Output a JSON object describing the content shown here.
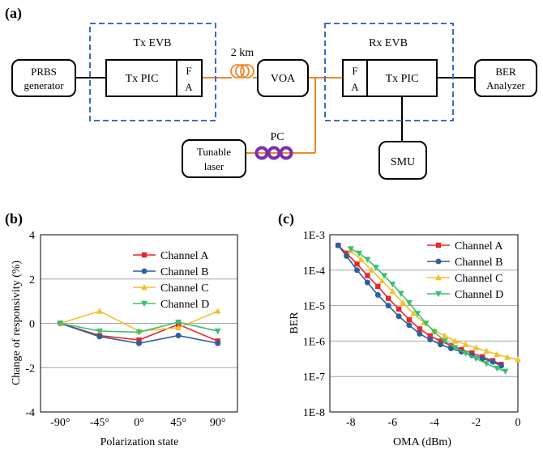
{
  "panel_a": {
    "label": "(a)",
    "tx_evb": "Tx EVB",
    "rx_evb": "Rx EVB",
    "prbs_line1": "PRBS",
    "prbs_line2": "generator",
    "tx_pic": "Tx PIC",
    "rx_pic": "Tx PIC",
    "fa_f": "F",
    "fa_a": "A",
    "fiber_length": "2 km",
    "voa": "VOA",
    "pc": "PC",
    "laser_line1": "Tunable",
    "laser_line2": "laser",
    "smu": "SMU",
    "ber_line1": "BER",
    "ber_line2": "Analyzer",
    "colors": {
      "fiber": "#f0862a",
      "evb_dash": "#3b6cc5",
      "pc_loops": "#7b2fa8"
    }
  },
  "chart_data": [
    {
      "panel": "(b)",
      "type": "line",
      "xlabel": "Polarization state",
      "ylabel": "Change of responsivity (%)",
      "categories": [
        "-90°",
        "-45°",
        "0°",
        "45°",
        "90°"
      ],
      "ylim": [
        -4,
        4
      ],
      "yticks": [
        "-4",
        "-2",
        "0",
        "2",
        "4"
      ],
      "grid": "horizontal",
      "legend": "top-right",
      "series": [
        {
          "name": "Channel A",
          "color": "#e8262b",
          "marker": "square",
          "values": [
            0,
            -0.55,
            -0.75,
            -0.05,
            -0.8
          ]
        },
        {
          "name": "Channel B",
          "color": "#2e5f9e",
          "marker": "circle",
          "values": [
            0,
            -0.6,
            -0.9,
            -0.55,
            -0.9
          ]
        },
        {
          "name": "Channel C",
          "color": "#f2c12e",
          "marker": "triangle",
          "values": [
            0,
            0.55,
            -0.35,
            -0.2,
            0.55
          ]
        },
        {
          "name": "Channel D",
          "color": "#3cbf6f",
          "marker": "tri-down",
          "values": [
            0,
            -0.35,
            -0.4,
            0.05,
            -0.35
          ]
        }
      ]
    },
    {
      "panel": "(c)",
      "type": "line",
      "xlabel": "OMA (dBm)",
      "ylabel": "BER",
      "xlim": [
        -9,
        0
      ],
      "xticks": [
        "-8",
        "-6",
        "-4",
        "-2",
        "0"
      ],
      "yscale": "log",
      "ylim_exp": [
        -8,
        -3
      ],
      "yticks": [
        "1E-8",
        "1E-7",
        "1E-6",
        "1E-5",
        "1E-4",
        "1E-3"
      ],
      "grid": "horizontal",
      "legend": "top-right",
      "series": [
        {
          "name": "Channel A",
          "color": "#e8262b",
          "marker": "square",
          "x": [
            -8.6,
            -8.2,
            -7.7,
            -7.2,
            -6.7,
            -6.2,
            -5.7,
            -5.2,
            -4.7,
            -4.2,
            -3.7,
            -3.2,
            -2.7,
            -2.2,
            -1.7,
            -1.2,
            -0.8
          ],
          "y": [
            0.0005,
            0.0003,
            0.00015,
            7e-05,
            3.5e-05,
            1.6e-05,
            8e-06,
            4e-06,
            2.2e-06,
            1.4e-06,
            1e-06,
            7.5e-07,
            5.8e-07,
            4.6e-07,
            3.6e-07,
            2.8e-07,
            2.2e-07
          ]
        },
        {
          "name": "Channel B",
          "color": "#2e5f9e",
          "marker": "circle",
          "x": [
            -8.6,
            -8.2,
            -7.7,
            -7.2,
            -6.7,
            -6.2,
            -5.7,
            -5.2,
            -4.7,
            -4.2,
            -3.7,
            -3.2,
            -2.7,
            -2.2,
            -1.7,
            -1.2,
            -0.8
          ],
          "y": [
            0.0005,
            0.00025,
            0.0001,
            4.5e-05,
            2e-05,
            1e-05,
            5e-06,
            2.8e-06,
            1.6e-06,
            1.1e-06,
            8e-07,
            6.2e-07,
            5e-07,
            4e-07,
            3.2e-07,
            2.6e-07,
            2e-07
          ]
        },
        {
          "name": "Channel C",
          "color": "#f2c12e",
          "marker": "triangle",
          "x": [
            -8.0,
            -7.5,
            -7.0,
            -6.5,
            -6.0,
            -5.5,
            -5.0,
            -4.5,
            -4.0,
            -3.5,
            -3.0,
            -2.5,
            -2.0,
            -1.5,
            -1.0,
            -0.5,
            0.0
          ],
          "y": [
            0.00035,
            0.0002,
            0.0001,
            5e-05,
            2.5e-05,
            1.2e-05,
            6e-06,
            3.3e-06,
            2e-06,
            1.4e-06,
            1e-06,
            8e-07,
            6.5e-07,
            5.2e-07,
            4.2e-07,
            3.5e-07,
            3e-07
          ]
        },
        {
          "name": "Channel D",
          "color": "#3cbf6f",
          "marker": "tri-down",
          "x": [
            -8.0,
            -7.6,
            -7.2,
            -6.8,
            -6.4,
            -6.0,
            -5.6,
            -5.2,
            -4.8,
            -4.4,
            -4.0,
            -3.5,
            -3.0,
            -2.5,
            -2.0,
            -1.5,
            -1.0,
            -0.6
          ],
          "y": [
            0.0004,
            0.0003,
            0.0002,
            0.00012,
            7e-05,
            4e-05,
            2.2e-05,
            1.2e-05,
            6e-06,
            3.2e-06,
            1.8e-06,
            1e-06,
            6.5e-07,
            4.5e-07,
            3.2e-07,
            2.3e-07,
            1.7e-07,
            1.4e-07
          ]
        }
      ]
    }
  ]
}
